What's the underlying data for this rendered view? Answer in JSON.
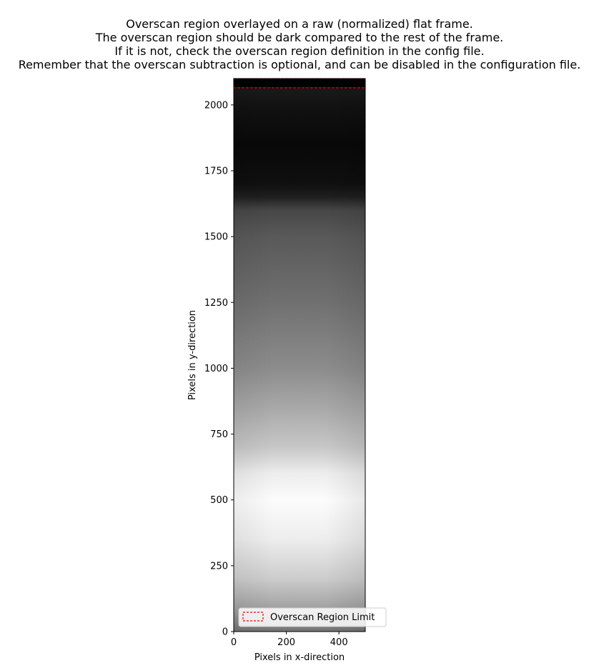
{
  "chart_data": {
    "type": "heatmap",
    "title_lines": [
      "Overscan region overlayed on a raw (normalized) flat frame.",
      "The overscan region should be dark compared to the rest of the frame.",
      "If it is not, check the overscan region definition in the config file.",
      "Remember that the overscan subtraction is optional, and can be disabled in the configuration file."
    ],
    "xlabel": "Pixels in x-direction",
    "ylabel": "Pixels in y-direction",
    "xlim": [
      0,
      500
    ],
    "ylim": [
      0,
      2100
    ],
    "xticks": [
      0,
      200,
      400
    ],
    "yticks": [
      0,
      250,
      500,
      750,
      1000,
      1250,
      1500,
      1750,
      2000
    ],
    "colormap": "gray",
    "overscan_region": {
      "label": "Overscan Region Limit",
      "x": [
        0,
        500
      ],
      "y": [
        2065,
        2100
      ],
      "edge_color": "#ff0000",
      "line_style": "dashed"
    },
    "legend": {
      "entries": [
        "Overscan Region Limit"
      ],
      "position": "lower-left"
    },
    "brightness_profile": [
      {
        "y": 0,
        "level": 0.45
      },
      {
        "y": 80,
        "level": 0.62
      },
      {
        "y": 200,
        "level": 0.8
      },
      {
        "y": 350,
        "level": 0.93
      },
      {
        "y": 500,
        "level": 0.99
      },
      {
        "y": 600,
        "level": 0.93
      },
      {
        "y": 700,
        "level": 0.78
      },
      {
        "y": 850,
        "level": 0.66
      },
      {
        "y": 1000,
        "level": 0.55
      },
      {
        "y": 1250,
        "level": 0.44
      },
      {
        "y": 1500,
        "level": 0.35
      },
      {
        "y": 1600,
        "level": 0.28
      },
      {
        "y": 1650,
        "level": 0.12
      },
      {
        "y": 1700,
        "level": 0.06
      },
      {
        "y": 1850,
        "level": 0.03
      },
      {
        "y": 2000,
        "level": 0.07
      },
      {
        "y": 2060,
        "level": 0.1
      },
      {
        "y": 2065,
        "level": 0.0
      },
      {
        "y": 2100,
        "level": 0.0
      }
    ]
  }
}
